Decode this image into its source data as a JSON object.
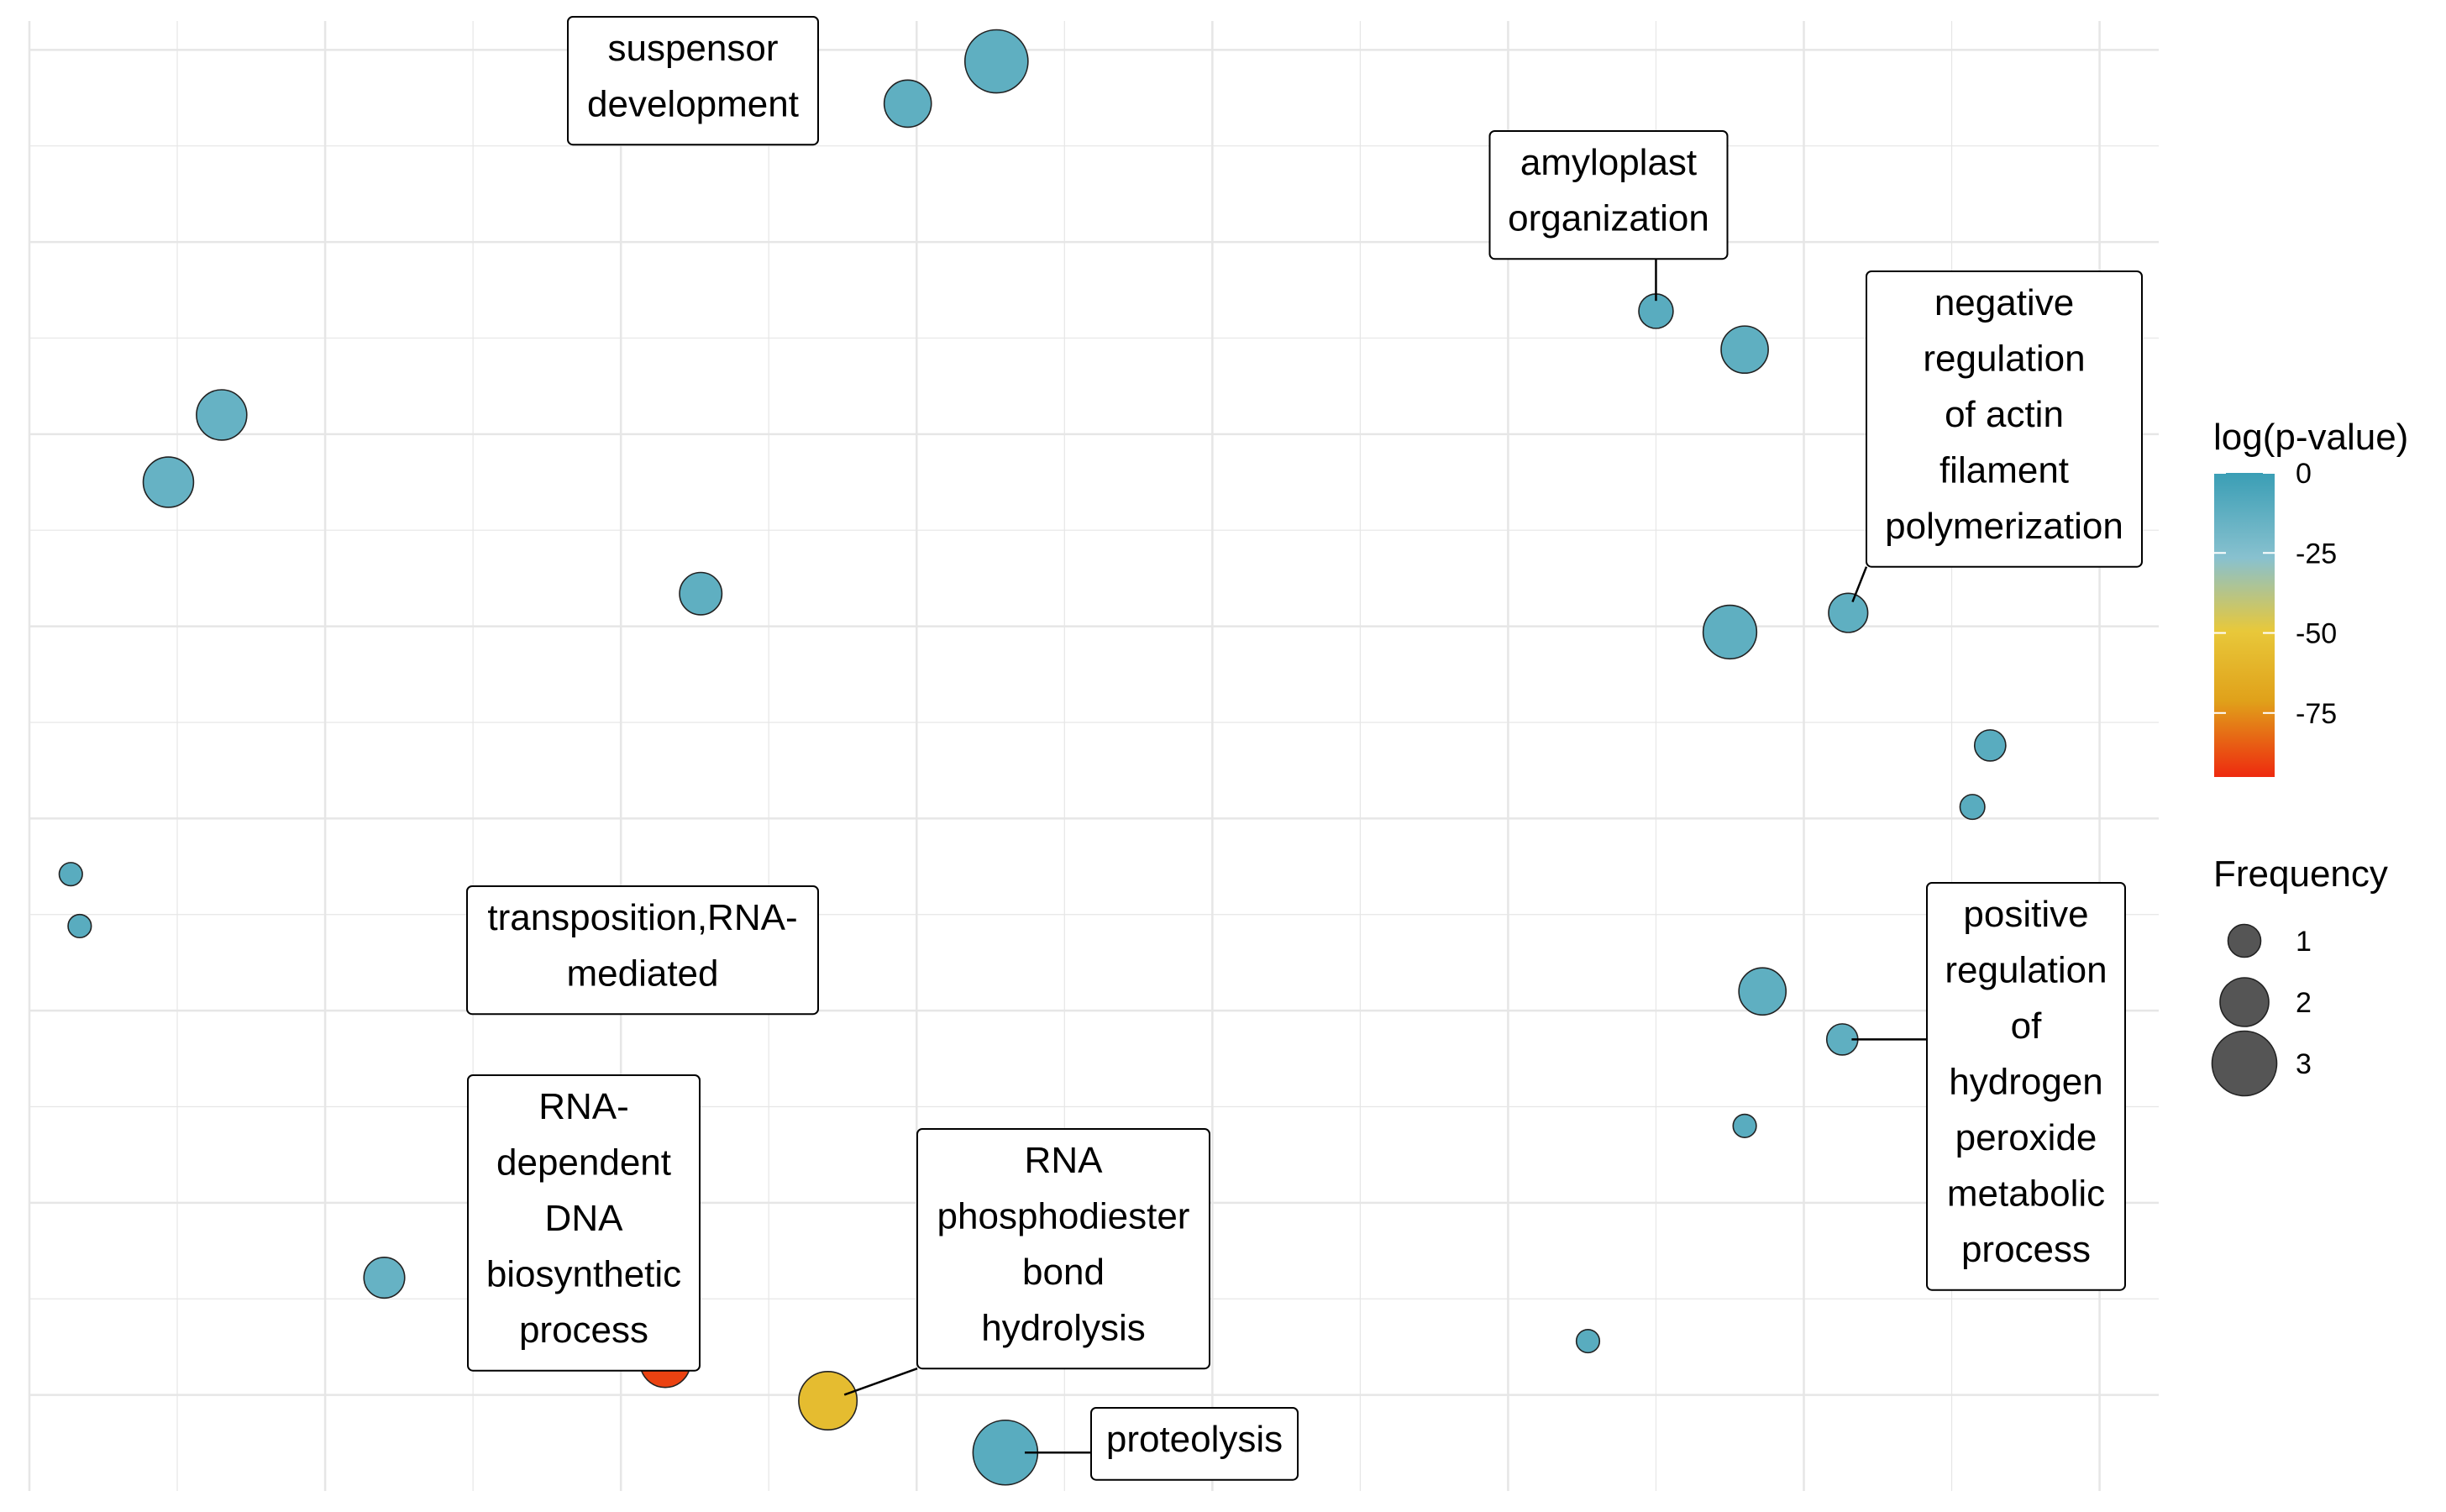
{
  "chart_data": {
    "type": "scatter",
    "title": "",
    "xlabel": "",
    "ylabel": "",
    "grid": true,
    "xlim": [
      0,
      7.2
    ],
    "ylim": [
      0,
      7.65
    ],
    "points": [
      {
        "x": 2.55,
        "y": 7.22,
        "freq": 1.4,
        "logp": -10,
        "label": "suspensor development"
      },
      {
        "x": 2.97,
        "y": 7.22,
        "freq": 1.9,
        "logp": -12
      },
      {
        "x": 3.27,
        "y": 7.44,
        "freq": 2.9,
        "logp": -12
      },
      {
        "x": 5.5,
        "y": 6.14,
        "freq": 1.1,
        "logp": -10,
        "label": "amyloplast organization"
      },
      {
        "x": 5.8,
        "y": 5.94,
        "freq": 1.9,
        "logp": -12
      },
      {
        "x": 0.65,
        "y": 5.6,
        "freq": 2.1,
        "logp": -14
      },
      {
        "x": 0.47,
        "y": 5.25,
        "freq": 2.1,
        "logp": -14
      },
      {
        "x": 2.27,
        "y": 4.67,
        "freq": 1.6,
        "logp": -12
      },
      {
        "x": 5.75,
        "y": 4.47,
        "freq": 2.3,
        "logp": -12
      },
      {
        "x": 6.15,
        "y": 4.57,
        "freq": 1.4,
        "logp": -12,
        "label": "negative regulation of actin filament polymerization"
      },
      {
        "x": 6.63,
        "y": 3.88,
        "freq": 0.9,
        "logp": -10
      },
      {
        "x": 6.57,
        "y": 3.56,
        "freq": 0.5,
        "logp": -10
      },
      {
        "x": 0.14,
        "y": 3.21,
        "freq": 0.4,
        "logp": -10
      },
      {
        "x": 0.17,
        "y": 2.94,
        "freq": 0.4,
        "logp": -10
      },
      {
        "x": 2.22,
        "y": 3.02,
        "freq": 0.3,
        "logp": -85,
        "label": "transposition,RNA-mediated"
      },
      {
        "x": 5.86,
        "y": 2.6,
        "freq": 1.9,
        "logp": -12
      },
      {
        "x": 6.13,
        "y": 2.35,
        "freq": 0.9,
        "logp": -12,
        "label": "positive regulation of hydrogen peroxide metabolic process"
      },
      {
        "x": 5.8,
        "y": 1.9,
        "freq": 0.4,
        "logp": -10
      },
      {
        "x": 1.2,
        "y": 1.11,
        "freq": 1.5,
        "logp": -14
      },
      {
        "x": 2.15,
        "y": 0.67,
        "freq": 2.1,
        "logp": -90,
        "label": "RNA-dependent DNA biosynthetic process"
      },
      {
        "x": 2.7,
        "y": 0.47,
        "freq": 2.6,
        "logp": -55,
        "label": "RNA phosphodiester bond hydrolysis"
      },
      {
        "x": 3.3,
        "y": 0.2,
        "freq": 3.0,
        "logp": -10,
        "label": "proteolysis"
      },
      {
        "x": 5.27,
        "y": 0.78,
        "freq": 0.4,
        "logp": -10
      }
    ],
    "legend": {
      "color_title": "log(p-value)",
      "color_ticks": [
        "0",
        "-25",
        "-50",
        "-75"
      ],
      "color_range": [
        0,
        -95
      ],
      "size_title": "Frequency",
      "size_ticks": [
        "1",
        "2",
        "3"
      ],
      "colors": {
        "high": "#3a9eb5",
        "mid_light": "#88c1cf",
        "mid": "#e8c83a",
        "orange": "#e0a11a",
        "low": "#ee2a0f"
      }
    }
  }
}
